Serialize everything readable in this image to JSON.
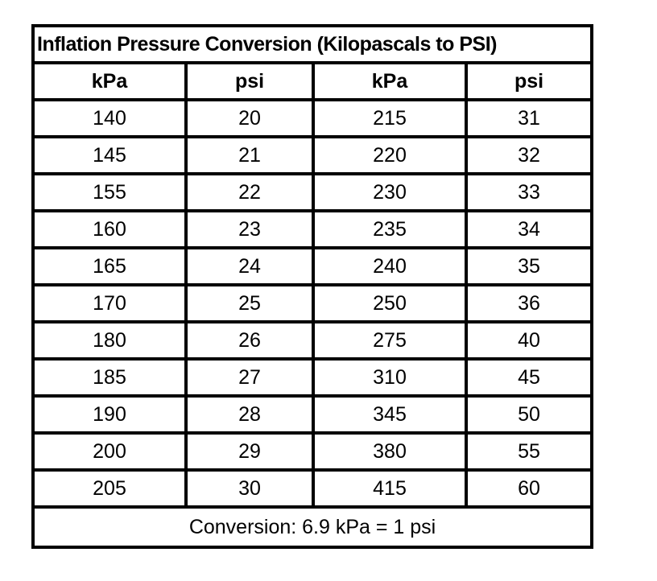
{
  "table": {
    "title": "Inflation Pressure Conversion (Kilopascals to PSI)",
    "columns": [
      "kPa",
      "psi",
      "kPa",
      "psi"
    ],
    "rows": [
      [
        "140",
        "20",
        "215",
        "31"
      ],
      [
        "145",
        "21",
        "220",
        "32"
      ],
      [
        "155",
        "22",
        "230",
        "33"
      ],
      [
        "160",
        "23",
        "235",
        "34"
      ],
      [
        "165",
        "24",
        "240",
        "35"
      ],
      [
        "170",
        "25",
        "250",
        "36"
      ],
      [
        "180",
        "26",
        "275",
        "40"
      ],
      [
        "185",
        "27",
        "310",
        "45"
      ],
      [
        "190",
        "28",
        "345",
        "50"
      ],
      [
        "200",
        "29",
        "380",
        "55"
      ],
      [
        "205",
        "30",
        "415",
        "60"
      ]
    ],
    "footer": "Conversion: 6.9 kPa = 1 psi",
    "border_color": "#000000",
    "background_color": "#ffffff"
  },
  "chart_data": {
    "type": "table",
    "title": "Inflation Pressure Conversion (Kilopascals to PSI)",
    "columns": [
      "kPa",
      "psi",
      "kPa",
      "psi"
    ],
    "rows": [
      [
        140,
        20,
        215,
        31
      ],
      [
        145,
        21,
        220,
        32
      ],
      [
        155,
        22,
        230,
        33
      ],
      [
        160,
        23,
        235,
        34
      ],
      [
        165,
        24,
        240,
        35
      ],
      [
        170,
        25,
        250,
        36
      ],
      [
        180,
        26,
        275,
        40
      ],
      [
        185,
        27,
        310,
        45
      ],
      [
        190,
        28,
        345,
        50
      ],
      [
        200,
        29,
        380,
        55
      ],
      [
        205,
        30,
        415,
        60
      ]
    ],
    "note": "Conversion: 6.9 kPa = 1 psi"
  }
}
